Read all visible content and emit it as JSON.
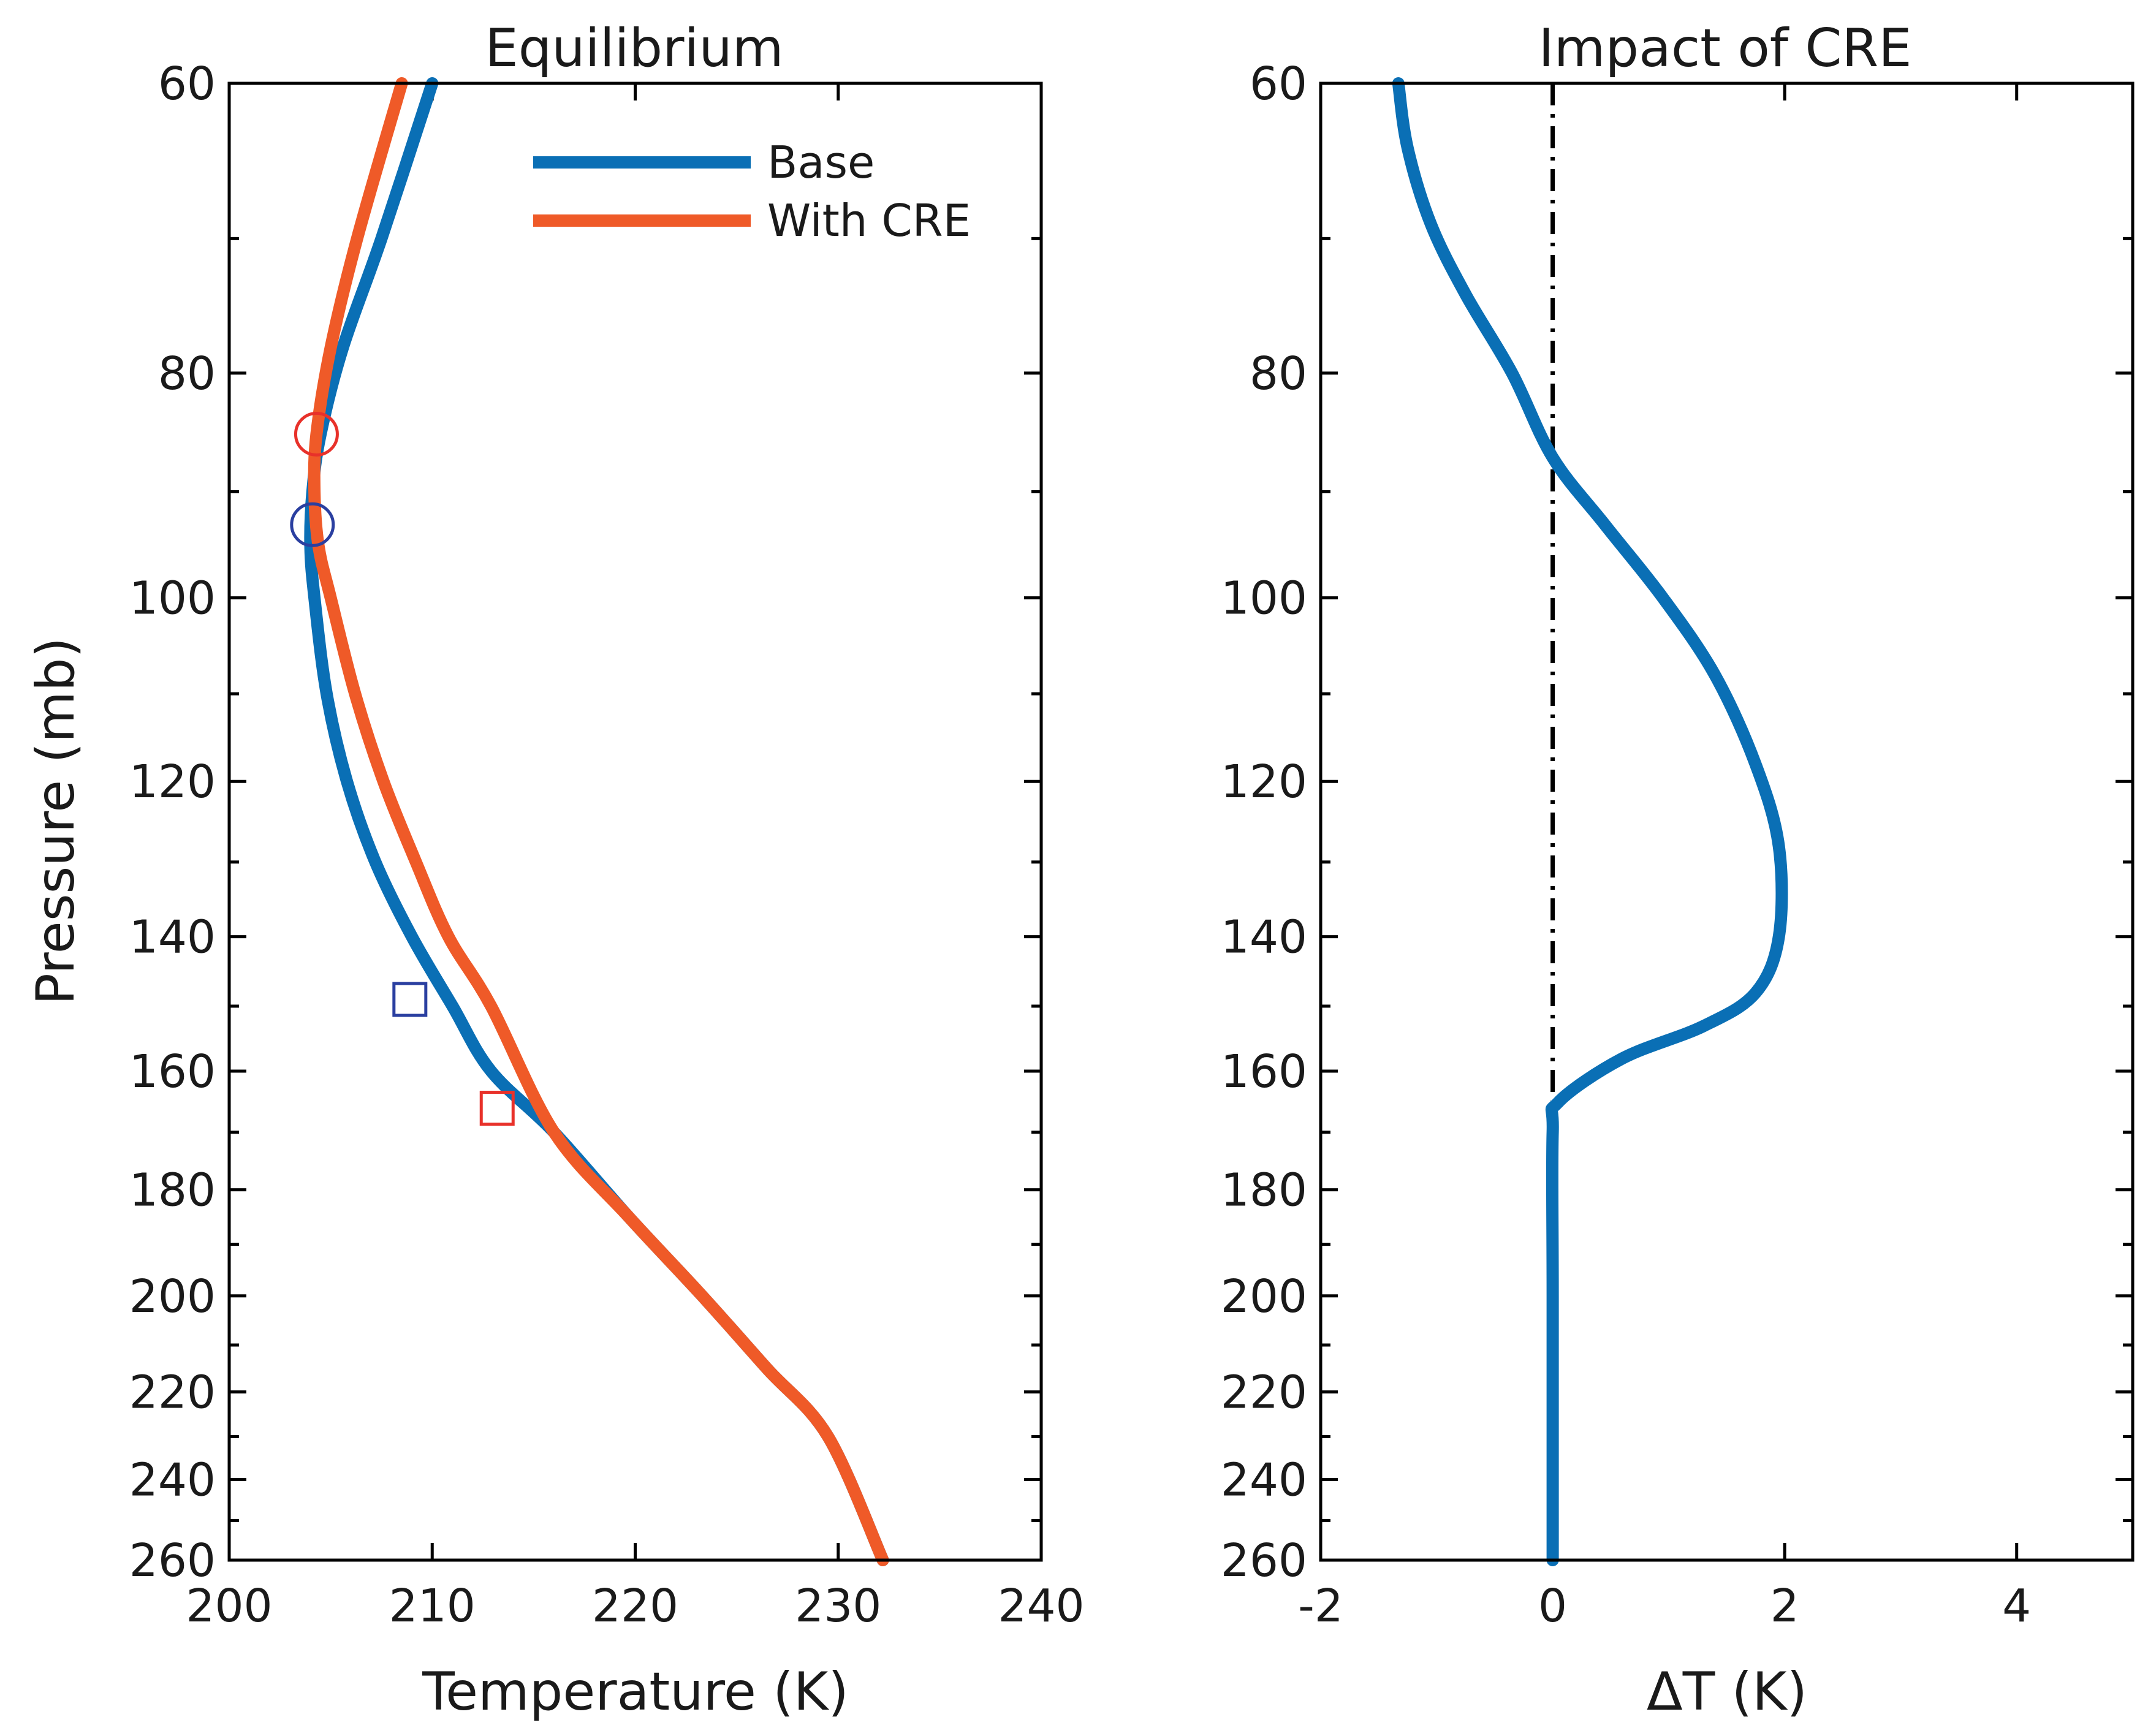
{
  "chart_data": [
    {
      "type": "line",
      "title": "Equilibrium",
      "xlabel": "Temperature (K)",
      "ylabel": "Pressure (mb)",
      "xlim": [
        200,
        240
      ],
      "ylim": [
        60,
        260
      ],
      "y_scale": "log",
      "y_direction": "reversed",
      "xticks": [
        200,
        210,
        220,
        230,
        240
      ],
      "yticks": [
        60,
        80,
        100,
        120,
        140,
        160,
        180,
        200,
        220,
        240,
        260
      ],
      "legend": {
        "position": "top-right"
      },
      "series": [
        {
          "name": "Base",
          "color": "#0a6fb5",
          "x": [
            210.0,
            207.5,
            205.6,
            204.5,
            204.1,
            204.0,
            204.2,
            204.8,
            205.8,
            207.2,
            209.0,
            211.0,
            212.9,
            216.0,
            219.7,
            223.3,
            226.5,
            229.5,
            232.2
          ],
          "y": [
            60,
            70,
            78,
            85,
            90,
            95,
            100,
            110,
            120,
            130,
            140,
            150,
            160,
            170,
            185,
            200,
            215,
            230,
            260
          ]
        },
        {
          "name": "With CRE",
          "color": "#ef5a28",
          "x": [
            208.5,
            206.3,
            205.0,
            204.3,
            204.2,
            204.4,
            205.0,
            206.2,
            207.6,
            209.2,
            210.8,
            212.9,
            216.0,
            219.7,
            223.3,
            226.5,
            229.5,
            232.2
          ],
          "y": [
            60,
            70,
            78,
            85,
            90,
            95,
            100,
            110,
            120,
            130,
            140,
            150,
            170,
            185,
            200,
            215,
            230,
            260
          ]
        }
      ],
      "markers": [
        {
          "series": "With CRE",
          "shape": "circle",
          "color": "#e8312a",
          "x": 204.3,
          "y": 85
        },
        {
          "series": "Base",
          "shape": "circle",
          "color": "#2a3fa0",
          "x": 204.1,
          "y": 93
        },
        {
          "series": "Base",
          "shape": "square",
          "color": "#2a3fa0",
          "x": 208.9,
          "y": 149
        },
        {
          "series": "With CRE",
          "shape": "square",
          "color": "#e8312a",
          "x": 213.2,
          "y": 166
        }
      ]
    },
    {
      "type": "line",
      "title": "Impact of CRE",
      "xlabel": "ΔT (K)",
      "ylabel": "",
      "xlim": [
        -2,
        5
      ],
      "ylim": [
        60,
        260
      ],
      "y_scale": "log",
      "y_direction": "reversed",
      "xticks": [
        -2,
        0,
        2,
        4
      ],
      "yticks": [
        60,
        80,
        100,
        120,
        140,
        160,
        180,
        200,
        220,
        240,
        260
      ],
      "reference_line": {
        "x": 0,
        "style": "dash-dot",
        "color": "#000000"
      },
      "series": [
        {
          "name": "ΔT",
          "color": "#0a6fb5",
          "x": [
            -1.33,
            -1.25,
            -1.05,
            -0.75,
            -0.35,
            0.0,
            0.45,
            0.95,
            1.4,
            1.75,
            1.95,
            1.95,
            1.75,
            1.3,
            0.6,
            0.05,
            0.0,
            0.0,
            0.0
          ],
          "y": [
            60,
            64,
            69,
            74,
            80,
            87,
            93,
            100,
            108,
            118,
            128,
            140,
            148,
            153,
            158,
            165,
            170,
            200,
            260
          ]
        }
      ]
    }
  ]
}
